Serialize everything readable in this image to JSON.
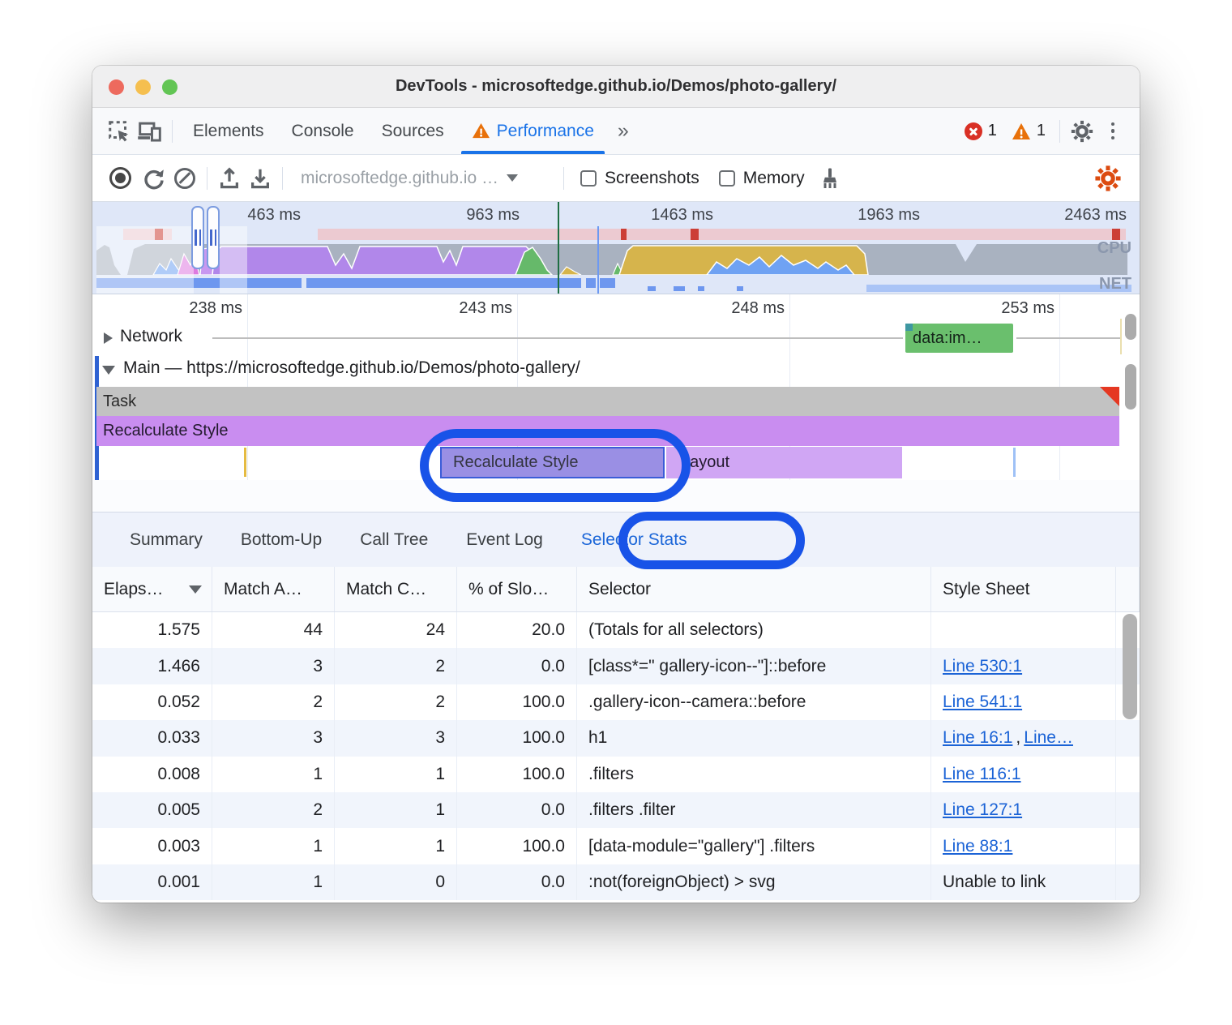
{
  "window": {
    "title": "DevTools - microsoftedge.github.io/Demos/photo-gallery/"
  },
  "tabs": {
    "elements": "Elements",
    "console": "Console",
    "sources": "Sources",
    "performance": "Performance",
    "more": "»",
    "error_count": "1",
    "warning_count": "1"
  },
  "toolbar": {
    "history_selected": "microsoftedge.github.io …",
    "screenshots_label": "Screenshots",
    "memory_label": "Memory"
  },
  "overview": {
    "ticks": [
      "463 ms",
      "963 ms",
      "1463 ms",
      "1963 ms",
      "2463 ms"
    ],
    "cpu_label": "CPU",
    "net_label": "NET"
  },
  "detail": {
    "ticks": [
      "238 ms",
      "243 ms",
      "248 ms",
      "253 ms"
    ],
    "network_label": "Network",
    "network_badge": "data:im…",
    "main_label": "Main — https://microsoftedge.github.io/Demos/photo-gallery/",
    "task_label": "Task",
    "recalc_track_label": "Recalculate Style",
    "selected_event_label": "Recalculate Style",
    "layout_label": "Layout"
  },
  "bottom_tabs": {
    "items": [
      "Summary",
      "Bottom-Up",
      "Call Tree",
      "Event Log",
      "Selector Stats"
    ],
    "active": "Selector Stats"
  },
  "table": {
    "headers": [
      "Elaps…",
      "Match A…",
      "Match C…",
      "% of Slo…",
      "Selector",
      "Style Sheet"
    ],
    "rows": [
      {
        "elapsed": "1.575",
        "match_attempts": "44",
        "match_count": "24",
        "slow_pct": "20.0",
        "selector": "(Totals for all selectors)",
        "sheet_links": [],
        "sheet_text": ""
      },
      {
        "elapsed": "1.466",
        "match_attempts": "3",
        "match_count": "2",
        "slow_pct": "0.0",
        "selector": "[class*=\" gallery-icon--\"]::before",
        "sheet_links": [
          "Line 530:1"
        ],
        "sheet_text": ""
      },
      {
        "elapsed": "0.052",
        "match_attempts": "2",
        "match_count": "2",
        "slow_pct": "100.0",
        "selector": ".gallery-icon--camera::before",
        "sheet_links": [
          "Line 541:1"
        ],
        "sheet_text": ""
      },
      {
        "elapsed": "0.033",
        "match_attempts": "3",
        "match_count": "3",
        "slow_pct": "100.0",
        "selector": "h1",
        "sheet_links": [
          "Line 16:1",
          "Line…"
        ],
        "sheet_text": ""
      },
      {
        "elapsed": "0.008",
        "match_attempts": "1",
        "match_count": "1",
        "slow_pct": "100.0",
        "selector": ".filters",
        "sheet_links": [
          "Line 116:1"
        ],
        "sheet_text": ""
      },
      {
        "elapsed": "0.005",
        "match_attempts": "2",
        "match_count": "1",
        "slow_pct": "0.0",
        "selector": ".filters .filter",
        "sheet_links": [
          "Line 127:1"
        ],
        "sheet_text": ""
      },
      {
        "elapsed": "0.003",
        "match_attempts": "1",
        "match_count": "1",
        "slow_pct": "100.0",
        "selector": "[data-module=\"gallery\"] .filters",
        "sheet_links": [
          "Line 88:1"
        ],
        "sheet_text": ""
      },
      {
        "elapsed": "0.001",
        "match_attempts": "1",
        "match_count": "0",
        "slow_pct": "0.0",
        "selector": ":not(foreignObject) > svg",
        "sheet_links": [],
        "sheet_text": "Unable to link"
      }
    ]
  },
  "colors": {
    "accent_blue": "#1a73e8",
    "annotation_blue": "#1853e8",
    "error_red": "#d93025",
    "warning_orange": "#e8710a",
    "settings_orange": "#dc4b10",
    "task_gray": "#c2c2c2",
    "recalc_purple": "#c98df0",
    "layout_purple": "#d0a6f4",
    "selected_event_fill": "#9a8fe4",
    "network_badge_green": "#6abf6d",
    "link_blue": "#1b63d6"
  }
}
